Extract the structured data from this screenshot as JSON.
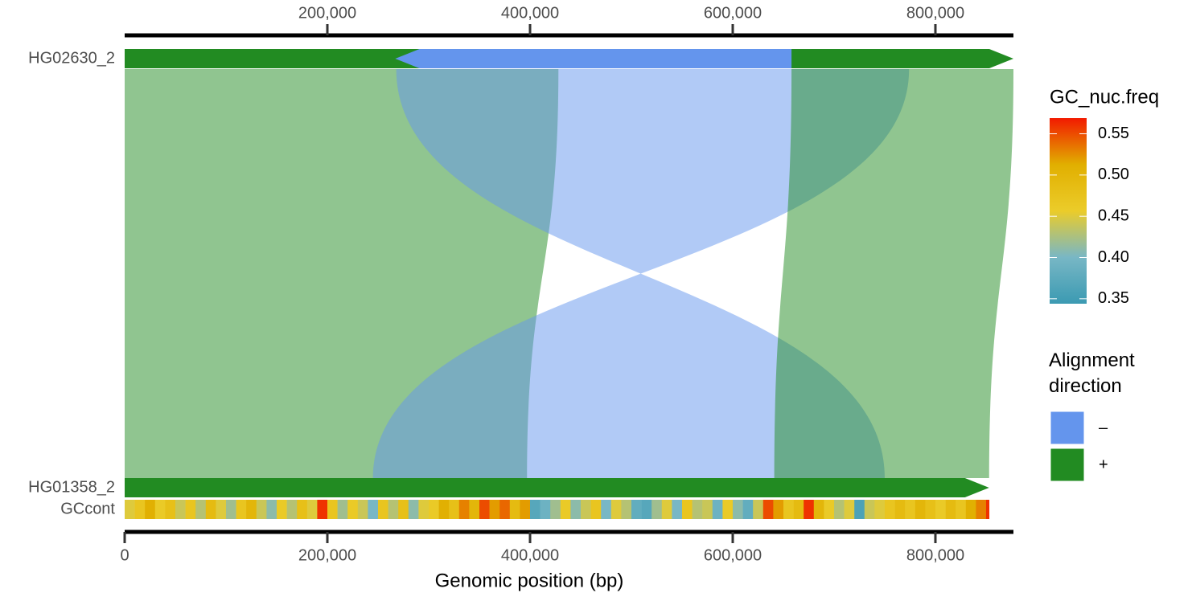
{
  "chart_data": {
    "type": "alignment",
    "xlabel": "Genomic position (bp)",
    "xlim": [
      0,
      877000
    ],
    "xticks_top": [
      {
        "value": 200000,
        "label": "200,000"
      },
      {
        "value": 400000,
        "label": "400,000"
      },
      {
        "value": 600000,
        "label": "600,000"
      },
      {
        "value": 800000,
        "label": "800,000"
      }
    ],
    "xticks": [
      0,
      {
        "value": 200000,
        "label": "200,000"
      },
      {
        "value": 400000,
        "label": "400,000"
      },
      {
        "value": 600000,
        "label": "600,000"
      },
      {
        "value": 800000,
        "label": "800,000"
      }
    ],
    "directions": [
      {
        "name": "–",
        "color": "#6495ED"
      },
      {
        "name": "+",
        "color": "#228B22"
      }
    ],
    "direction_legend_title": "Alignment direction",
    "sequences": [
      {
        "name": "HG02630_2",
        "segments": [
          {
            "start": 0,
            "end": 877000,
            "direction": "+"
          },
          {
            "start": 267000,
            "end": 658000,
            "direction": "–"
          }
        ]
      },
      {
        "name": "HG01358_2",
        "segments": [
          {
            "start": 0,
            "end": 853000,
            "direction": "+"
          }
        ]
      }
    ],
    "alignments": [
      {
        "direction": "+",
        "top": [
          0,
          428000
        ],
        "bottom": [
          0,
          397000
        ]
      },
      {
        "direction": "–",
        "top": [
          268000,
          774000
        ],
        "bottom": [
          245000,
          750000
        ]
      },
      {
        "direction": "+",
        "top": [
          658000,
          877000
        ],
        "bottom": [
          641000,
          853000
        ]
      }
    ],
    "gc": {
      "name": "GCcont",
      "bins": [
        0,
        10000,
        20000,
        30000,
        40000,
        50000,
        60000,
        70000,
        80000,
        90000,
        100000,
        110000,
        120000,
        130000,
        140000,
        150000,
        160000,
        170000,
        180000,
        190000,
        200000,
        210000,
        220000,
        230000,
        240000,
        250000,
        260000,
        270000,
        280000,
        290000,
        300000,
        310000,
        320000,
        330000,
        340000,
        350000,
        360000,
        370000,
        380000,
        390000,
        400000,
        410000,
        420000,
        430000,
        440000,
        450000,
        460000,
        470000,
        480000,
        490000,
        500000,
        510000,
        520000,
        530000,
        540000,
        550000,
        560000,
        570000,
        580000,
        590000,
        600000,
        610000,
        620000,
        630000,
        640000,
        650000,
        660000,
        670000,
        680000,
        690000,
        700000,
        710000,
        720000,
        730000,
        740000,
        750000,
        760000,
        770000,
        780000,
        790000,
        800000,
        810000,
        820000,
        830000,
        840000,
        850000,
        853000
      ],
      "values": [
        0.45,
        0.47,
        0.51,
        0.46,
        0.48,
        0.44,
        0.47,
        0.43,
        0.49,
        0.45,
        0.42,
        0.47,
        0.5,
        0.44,
        0.41,
        0.46,
        0.43,
        0.48,
        0.45,
        0.56,
        0.47,
        0.42,
        0.46,
        0.44,
        0.4,
        0.47,
        0.43,
        0.48,
        0.41,
        0.45,
        0.46,
        0.51,
        0.48,
        0.53,
        0.5,
        0.55,
        0.52,
        0.54,
        0.49,
        0.52,
        0.37,
        0.39,
        0.42,
        0.46,
        0.41,
        0.44,
        0.47,
        0.4,
        0.45,
        0.43,
        0.38,
        0.37,
        0.42,
        0.45,
        0.4,
        0.47,
        0.43,
        0.44,
        0.39,
        0.46,
        0.41,
        0.38,
        0.44,
        0.55,
        0.52,
        0.47,
        0.49,
        0.56,
        0.5,
        0.46,
        0.43,
        0.45,
        0.36,
        0.44,
        0.45,
        0.47,
        0.49,
        0.47,
        0.5,
        0.48,
        0.46,
        0.49,
        0.47,
        0.51,
        0.53,
        0.56
      ]
    },
    "colorbar": {
      "title": "GC_nuc.freq",
      "lim": [
        0.344,
        0.569
      ],
      "ticks": [
        0.35,
        {
          "value": 0.4,
          "label": "0.40"
        },
        0.45,
        {
          "value": 0.5,
          "label": "0.50"
        },
        0.55
      ],
      "colors": [
        "#3B9AB2",
        "#78B7C5",
        "#EBCC2A",
        "#E1AF00",
        "#F21A00"
      ]
    }
  }
}
